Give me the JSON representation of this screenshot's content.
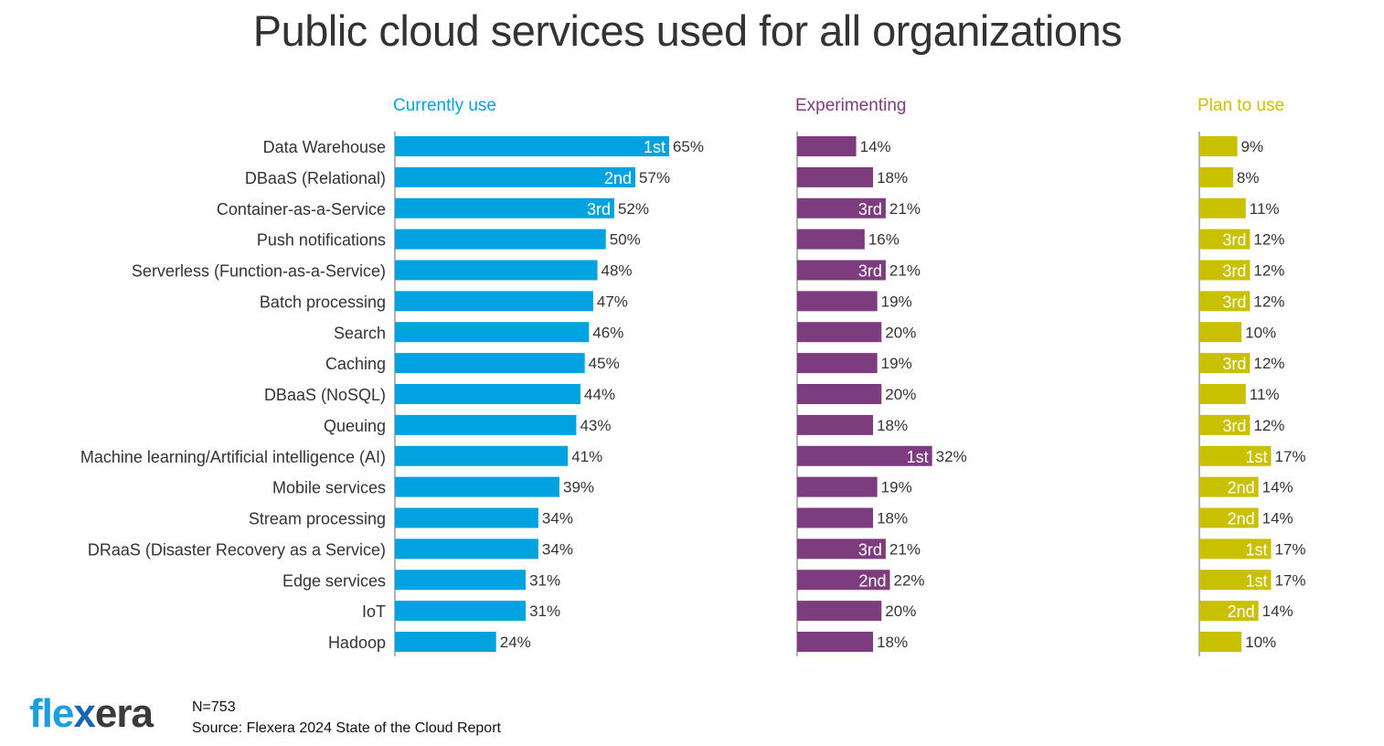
{
  "chart_data": {
    "type": "bar",
    "title": "Public cloud services used for all organizations",
    "orientation": "horizontal",
    "unit": "%",
    "categories": [
      "Data Warehouse",
      "DBaaS (Relational)",
      "Container-as-a-Service",
      "Push notifications",
      "Serverless (Function-as-a-Service)",
      "Batch processing",
      "Search",
      "Caching",
      "DBaaS (NoSQL)",
      "Queuing",
      "Machine learning/Artificial intelligence (AI)",
      "Mobile services",
      "Stream processing",
      "DRaaS (Disaster Recovery as a Service)",
      "Edge services",
      "IoT",
      "Hadoop"
    ],
    "series": [
      {
        "name": "Currently use",
        "color": "#00a3e0",
        "values": [
          65,
          57,
          52,
          50,
          48,
          47,
          46,
          45,
          44,
          43,
          41,
          39,
          34,
          34,
          31,
          31,
          24
        ],
        "ranks": [
          "1st",
          "2nd",
          "3rd",
          "",
          "",
          "",
          "",
          "",
          "",
          "",
          "",
          "",
          "",
          "",
          "",
          "",
          ""
        ]
      },
      {
        "name": "Experimenting",
        "color": "#7d3c7d",
        "values": [
          14,
          18,
          21,
          16,
          21,
          19,
          20,
          19,
          20,
          18,
          32,
          19,
          18,
          21,
          22,
          20,
          18
        ],
        "ranks": [
          "",
          "",
          "3rd",
          "",
          "3rd",
          "",
          "",
          "",
          "",
          "",
          "1st",
          "",
          "",
          "3rd",
          "2nd",
          "",
          ""
        ]
      },
      {
        "name": "Plan to use",
        "color": "#c9c000",
        "values": [
          9,
          8,
          11,
          12,
          12,
          12,
          10,
          12,
          11,
          12,
          17,
          14,
          14,
          17,
          17,
          14,
          10
        ],
        "ranks": [
          "",
          "",
          "",
          "3rd",
          "3rd",
          "3rd",
          "",
          "3rd",
          "",
          "3rd",
          "1st",
          "2nd",
          "2nd",
          "1st",
          "1st",
          "2nd",
          ""
        ]
      }
    ]
  },
  "footer": {
    "logo": "flexera",
    "n": "N=753",
    "source": "Source: Flexera 2024 State of the Cloud Report"
  }
}
